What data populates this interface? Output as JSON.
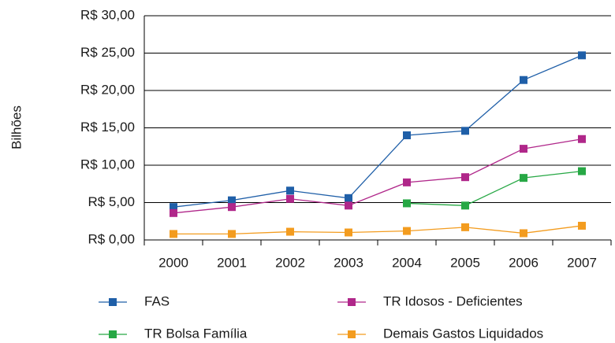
{
  "chart_data": {
    "type": "line",
    "y_label": "Bilhões",
    "categories": [
      "2000",
      "2001",
      "2002",
      "2003",
      "2004",
      "2005",
      "2006",
      "2007"
    ],
    "series": [
      {
        "name": "FAS",
        "color": "#1f5fa8",
        "values": [
          4.4,
          5.3,
          6.6,
          5.6,
          14.0,
          14.6,
          21.4,
          24.7
        ]
      },
      {
        "name": "TR Idosos - Deficientes",
        "color": "#b0278a",
        "values": [
          3.6,
          4.4,
          5.5,
          4.6,
          7.7,
          8.4,
          12.2,
          13.5
        ]
      },
      {
        "name": "TR Bolsa Família",
        "color": "#27a845",
        "values": [
          null,
          null,
          null,
          null,
          4.9,
          4.6,
          8.3,
          9.2
        ]
      },
      {
        "name": "Demais Gastos Liquidados",
        "color": "#f39c1f",
        "values": [
          0.8,
          0.8,
          1.1,
          1.0,
          1.2,
          1.7,
          0.9,
          1.9
        ]
      }
    ],
    "ylim": [
      0,
      30
    ],
    "yticks": [
      {
        "value": 0,
        "label": "R$ 0,00"
      },
      {
        "value": 5,
        "label": "R$ 5,00"
      },
      {
        "value": 10,
        "label": "R$ 10,00"
      },
      {
        "value": 15,
        "label": "R$ 15,00"
      },
      {
        "value": 20,
        "label": "R$ 20,00"
      },
      {
        "value": 25,
        "label": "R$ 25,00"
      },
      {
        "value": 30,
        "label": "R$ 30,00"
      }
    ],
    "grid": true,
    "legend": "bottom"
  }
}
